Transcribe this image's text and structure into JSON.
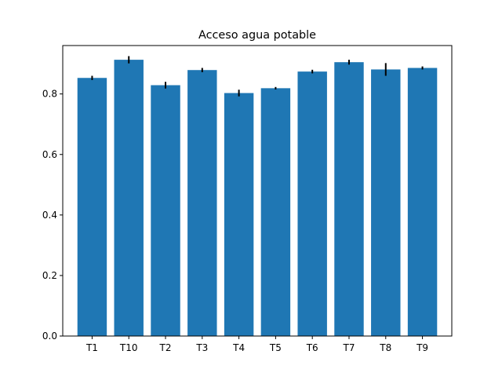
{
  "chart_data": {
    "type": "bar",
    "title": "Acceso agua potable",
    "xlabel": "",
    "ylabel": "",
    "categories": [
      "T1",
      "T10",
      "T2",
      "T3",
      "T4",
      "T5",
      "T6",
      "T7",
      "T8",
      "T9"
    ],
    "values": [
      0.853,
      0.913,
      0.829,
      0.879,
      0.803,
      0.819,
      0.874,
      0.905,
      0.881,
      0.886
    ],
    "errors": [
      0.007,
      0.012,
      0.011,
      0.007,
      0.011,
      0.004,
      0.006,
      0.008,
      0.021,
      0.005
    ],
    "ylim": [
      0,
      0.96
    ],
    "yticks": [
      0.0,
      0.2,
      0.4,
      0.6,
      0.8
    ],
    "ytick_labels": [
      "0.0",
      "0.2",
      "0.4",
      "0.6",
      "0.8"
    ],
    "bar_color": "#1f77b4",
    "error_color": "#000000",
    "grid": false,
    "legend": "none"
  }
}
